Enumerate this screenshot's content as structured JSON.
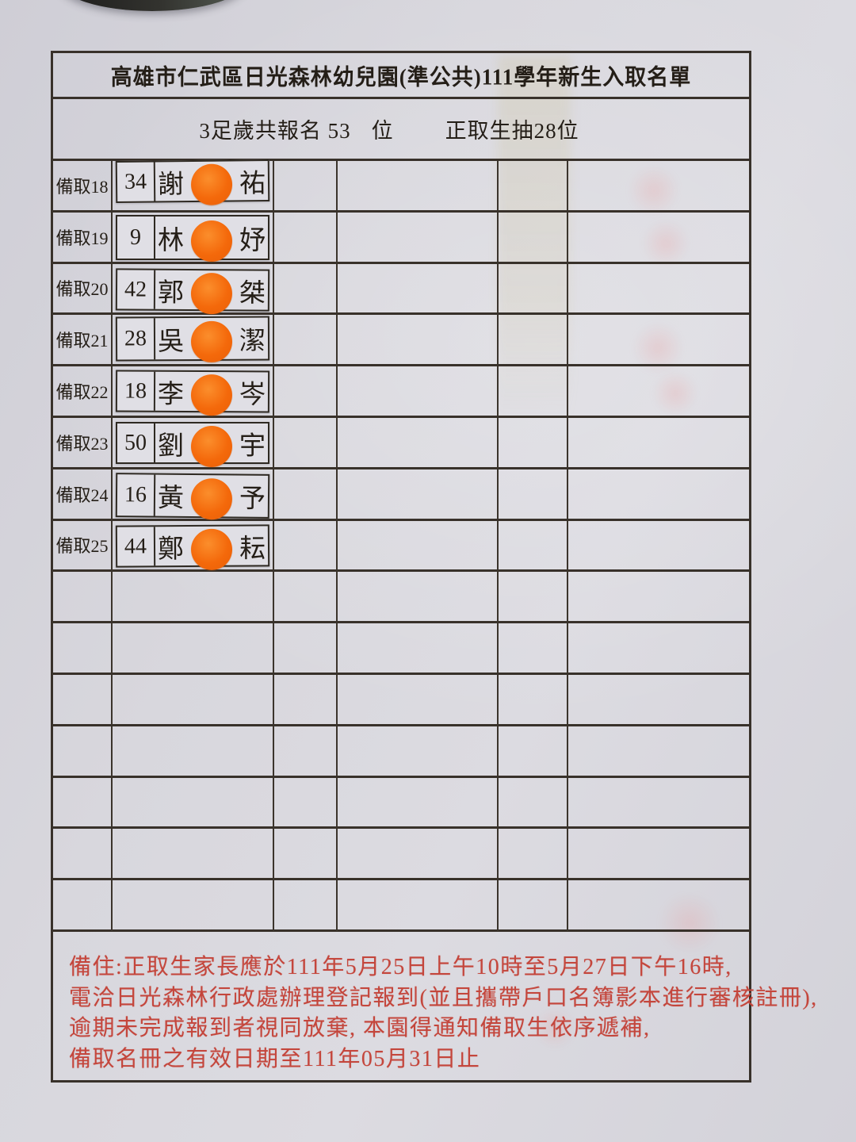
{
  "page": {
    "title": "高雄市仁武區日光森林幼兒園(準公共)111學年新生入取名單",
    "subtitle": {
      "left": "3足歲共報名 53",
      "unit": "位",
      "right": "正取生抽28位"
    }
  },
  "roster": {
    "rows": [
      {
        "label": "備取18",
        "number": "34",
        "surname": "謝",
        "given": "祐"
      },
      {
        "label": "備取19",
        "number": "9",
        "surname": "林",
        "given": "妤"
      },
      {
        "label": "備取20",
        "number": "42",
        "surname": "郭",
        "given": "桀"
      },
      {
        "label": "備取21",
        "number": "28",
        "surname": "吳",
        "given": "潔"
      },
      {
        "label": "備取22",
        "number": "18",
        "surname": "李",
        "given": "岑"
      },
      {
        "label": "備取23",
        "number": "50",
        "surname": "劉",
        "given": "宇"
      },
      {
        "label": "備取24",
        "number": "16",
        "surname": "黃",
        "given": "予"
      },
      {
        "label": "備取25",
        "number": "44",
        "surname": "鄭",
        "given": "耘"
      }
    ],
    "empty_row_count": 7,
    "columns_per_row": 6
  },
  "notes": {
    "lines": [
      "備住:正取生家長應於111年5月25日上午10時至5月27日下午16時,",
      "電洽日光森林行政處辦理登記報到(並且攜帶戶口名簿影本進行審核註冊),",
      "逾期未完成報到者視同放棄,  本園得通知備取生依序遞補,",
      "備取名冊之有效日期至111年05月31日止"
    ]
  },
  "colors": {
    "sticker_orange": "#f4690b",
    "note_red": "#c4463c",
    "ink": "#241e17",
    "grid_line": "#38312a",
    "paper": "#d7d6dc"
  }
}
